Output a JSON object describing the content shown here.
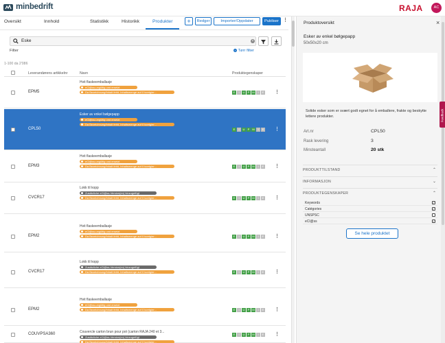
{
  "header": {
    "logo_text": "minbedrift",
    "brand": "RAJA",
    "avatar_initials": "AC"
  },
  "nav": {
    "tabs": [
      {
        "label": "Oversikt"
      },
      {
        "label": "Innhold"
      },
      {
        "label": "Statistikk"
      },
      {
        "label": "Historikk"
      },
      {
        "label": "Produkter"
      }
    ],
    "active_tab": "Produkter",
    "plus_label": "+",
    "edit_label": "Redger",
    "import_label": "Importer/Oppdater",
    "publish_label": "Publiser"
  },
  "search": {
    "value": "Eske",
    "filter_label": "Filter",
    "remove_filter_label": "Tørr filter"
  },
  "table": {
    "count_text": "1-100 da 2'086",
    "headers": {
      "code": "Leverandørens artikkelnr",
      "name": "Navn",
      "props": "Produktegenskaper"
    },
    "rows": [
      {
        "code": "EPM5",
        "desc": "Hvit flaskeemballasje",
        "selected": false,
        "badges": [
          {
            "kind": "orange",
            "text": "eCl@ss-ungültig und ersetzt"
          },
          {
            "kind": "orange",
            "text": "Da Bezeichnung/Inhalt fehlt, Inhaltsmenge auf 0 korrigier..."
          }
        ]
      },
      {
        "code": "CPL50",
        "desc": "Esker av enkel bølgepapp",
        "selected": true,
        "badges": [
          {
            "kind": "orange",
            "text": "eCl@ss-ungültig und ersetzt"
          },
          {
            "kind": "orange",
            "text": "Da Bezeichnung/Inhalt fehlt, Inhaltsmenge auf 0 korrigier..."
          }
        ]
      },
      {
        "code": "EPM3",
        "desc": "Hvit flaskeemballasje",
        "selected": false,
        "badges": [
          {
            "kind": "orange",
            "text": "eCl@ss-ungültig und ersetzt"
          },
          {
            "kind": "orange",
            "text": "Da Bezeichnung/Inhalt fehlt, Inhaltsmenge auf 0 korrigier..."
          }
        ]
      },
      {
        "code": "CVCR17",
        "desc": "Lokk til kopp",
        "selected": false,
        "badges": [
          {
            "kind": "gray",
            "text": "Zusätzliche eCl@ss-Version(en) hinzugefügt"
          },
          {
            "kind": "orange",
            "text": "Da Bezeichnung/Inhalt fehlt, Inhaltsmenge auf 0 korrigier..."
          }
        ]
      },
      {
        "code": "EPM2",
        "desc": "Hvit flaskeemballasje",
        "selected": false,
        "badges": [
          {
            "kind": "orange",
            "text": "eCl@ss-ungültig und ersetzt"
          },
          {
            "kind": "orange",
            "text": "Da Bezeichnung/Inhalt fehlt, Inhaltsmenge auf 0 korrigier..."
          }
        ]
      },
      {
        "code": "CVCR17",
        "desc": "Lokk til kopp",
        "selected": false,
        "badges": [
          {
            "kind": "gray",
            "text": "Zusätzliche eCl@ss-Version(en) hinzugefügt"
          },
          {
            "kind": "orange",
            "text": "Da Bezeichnung/Inhalt fehlt, Inhaltsmenge auf 0 korrigier..."
          }
        ]
      },
      {
        "code": "EPM2",
        "desc": "Hvit flaskeemballasje",
        "selected": false,
        "badges": [
          {
            "kind": "orange",
            "text": "eCl@ss-ungültig und ersetzt"
          },
          {
            "kind": "orange",
            "text": "Da Bezeichnung/Inhalt fehlt, Inhaltsmenge auf 0 korrigier..."
          }
        ]
      },
      {
        "code": "COUVPSA360",
        "desc": "Couvercle carton brun pour pot (carton RAJA 240 et 3...",
        "selected": false,
        "badges": [
          {
            "kind": "gray",
            "text": "Zusätzliche eCl@ss-Version(en) hinzugefügt"
          },
          {
            "kind": "orange",
            "text": "Da Bezeichnung/Inhalt fehlt, Inhaltsmenge auf 0 korrigier..."
          }
        ]
      }
    ],
    "prop_letters": [
      "E",
      "I",
      "U",
      "P",
      "M",
      "I",
      "E"
    ]
  },
  "panel": {
    "title": "Produktoversikt",
    "close_glyph": "×",
    "name": "Esker av enkel bølgepapp",
    "size": "50x50x20 cm",
    "description": "Solide esker som er svært godt egnet for å emballere, frakte og beskytte lettere produkter.",
    "fields": [
      {
        "key": "Art.nr",
        "value": "CPL50"
      },
      {
        "key": "Rask levering",
        "value": "3"
      },
      {
        "key": "Minsteantall",
        "value": "20 stk"
      }
    ],
    "sections": [
      {
        "label": "PRODUKTTILSTAND",
        "chevron": "^"
      },
      {
        "label": "INFORMASJON",
        "chevron": "v"
      },
      {
        "label": "PRODUKTEGENSKAPER",
        "chevron": "^"
      }
    ],
    "checks": [
      {
        "label": "Keywords",
        "checked": true
      },
      {
        "label": "Catégories",
        "checked": true
      },
      {
        "label": "UNSPSC",
        "checked": false
      },
      {
        "label": "eCl@ss",
        "checked": true
      }
    ],
    "see_all_label": "Se hele produktet",
    "feedback_label": "Feedback"
  },
  "colors": {
    "accent": "#1a73c9",
    "selected_row": "#2f74c4",
    "warning": "#f0a23e",
    "info": "#6a6a6a",
    "ok": "#43a047",
    "brand_red": "#c8102e"
  }
}
